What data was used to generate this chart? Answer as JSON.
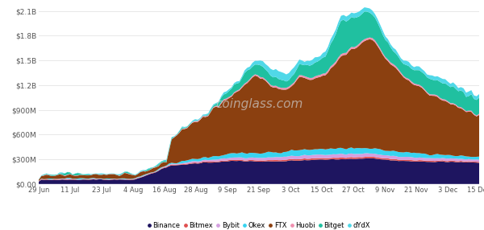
{
  "exchanges": [
    "Binance",
    "Bitmex",
    "Bybit",
    "Okex",
    "FTX",
    "Huobi",
    "Bitget",
    "dYdX"
  ],
  "colors": [
    "#1e1560",
    "#e05050",
    "#d4a0e0",
    "#38d4f0",
    "#8B4010",
    "#f090b0",
    "#20c0a0",
    "#50d8e8"
  ],
  "x_labels": [
    "29 Jun",
    "11 Jul",
    "23 Jul",
    "4 Aug",
    "16 Aug",
    "28 Aug",
    "9 Sep",
    "21 Sep",
    "3 Oct",
    "15 Oct",
    "27 Oct",
    "9 Nov",
    "21 Nov",
    "3 Dec",
    "15 Dec"
  ],
  "y_labels": [
    "$0.00",
    "$300M",
    "$600M",
    "$900M",
    "$1.2B",
    "$1.5B",
    "$1.8B",
    "$2.1B"
  ],
  "y_ticks": [
    0,
    300000000,
    600000000,
    900000000,
    1200000000,
    1500000000,
    1800000000,
    2100000000
  ],
  "n_points": 170,
  "background_color": "#ffffff",
  "grid_color": "#e8e8e8",
  "watermark": "coinglass.com"
}
